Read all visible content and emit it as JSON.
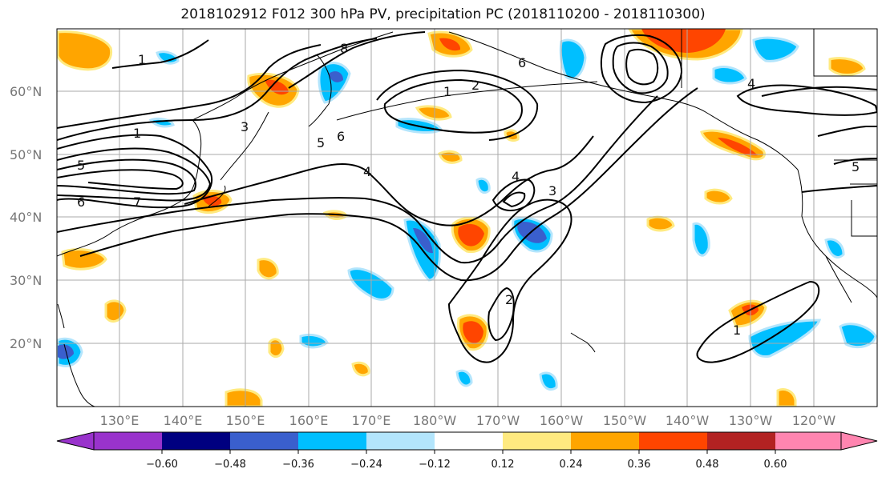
{
  "title": "2018102912 F012 300 hPa PV, precipitation PC (2018110200 - 2018110300)",
  "lat_labels": [
    "60°N",
    "50°N",
    "40°N",
    "30°N",
    "20°N"
  ],
  "lon_labels": [
    "130°E",
    "140°E",
    "150°E",
    "160°E",
    "170°E",
    "180°W",
    "170°W",
    "160°W",
    "150°W",
    "140°W",
    "130°W",
    "120°W"
  ],
  "contour_labels": [
    "1",
    "1",
    "1",
    "2",
    "3",
    "4",
    "4",
    "4",
    "5",
    "5",
    "5",
    "6",
    "6",
    "6",
    "7",
    "8",
    "3",
    "2",
    "1"
  ],
  "colorbar": {
    "ticks": [
      "−0.60",
      "−0.48",
      "−0.36",
      "−0.24",
      "−0.12",
      "0.12",
      "0.24",
      "0.36",
      "0.48",
      "0.60"
    ],
    "colors": [
      "#9933cc",
      "#000080",
      "#3a5fcd",
      "#00bfff",
      "#b3e5fc",
      "#ffffff",
      "#ffea80",
      "#ffa500",
      "#ff4500",
      "#b22222",
      "#ff85b0"
    ]
  },
  "colors": {
    "pos_light": "#ffea80",
    "pos_mid": "#ffa500",
    "pos_strong": "#ff4500",
    "neg_light": "#b3e5fc",
    "neg_mid": "#00bfff",
    "neg_strong": "#3a5fcd",
    "grid": "#aaaaaa"
  }
}
